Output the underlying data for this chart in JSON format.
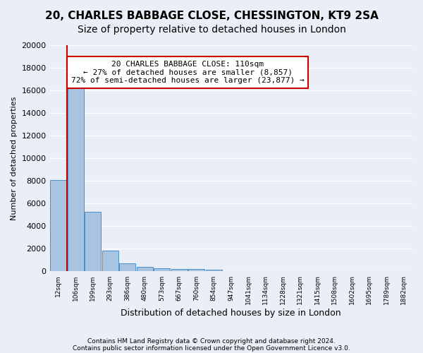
{
  "title1": "20, CHARLES BABBAGE CLOSE, CHESSINGTON, KT9 2SA",
  "title2": "Size of property relative to detached houses in London",
  "xlabel": "Distribution of detached houses by size in London",
  "ylabel": "Number of detached properties",
  "bin_labels": [
    "12sqm",
    "106sqm",
    "199sqm",
    "293sqm",
    "386sqm",
    "480sqm",
    "573sqm",
    "667sqm",
    "760sqm",
    "854sqm",
    "947sqm",
    "1041sqm",
    "1134sqm",
    "1228sqm",
    "1321sqm",
    "1415sqm",
    "1508sqm",
    "1602sqm",
    "1695sqm",
    "1789sqm",
    "1882sqm"
  ],
  "bar_heights": [
    8100,
    16600,
    5300,
    1850,
    700,
    380,
    280,
    220,
    200,
    160,
    0,
    0,
    0,
    0,
    0,
    0,
    0,
    0,
    0,
    0,
    0
  ],
  "bar_color": "#a8c4e0",
  "bar_edge_color": "#4a90c4",
  "vline_x": 0.5,
  "annotation_title": "20 CHARLES BABBAGE CLOSE: 110sqm",
  "annotation_line1": "← 27% of detached houses are smaller (8,857)",
  "annotation_line2": "72% of semi-detached houses are larger (23,877) →",
  "annotation_box_color": "#ffffff",
  "annotation_box_edge_color": "#cc0000",
  "vline_color": "#cc0000",
  "footer1": "Contains HM Land Registry data © Crown copyright and database right 2024.",
  "footer2": "Contains public sector information licensed under the Open Government Licence v3.0.",
  "ylim": [
    0,
    20000
  ],
  "yticks": [
    0,
    2000,
    4000,
    6000,
    8000,
    10000,
    12000,
    14000,
    16000,
    18000,
    20000
  ],
  "plot_bg_color": "#eaeff7",
  "fig_bg_color": "#eaeff7",
  "grid_color": "#ffffff",
  "title_fontsize": 11,
  "subtitle_fontsize": 10
}
